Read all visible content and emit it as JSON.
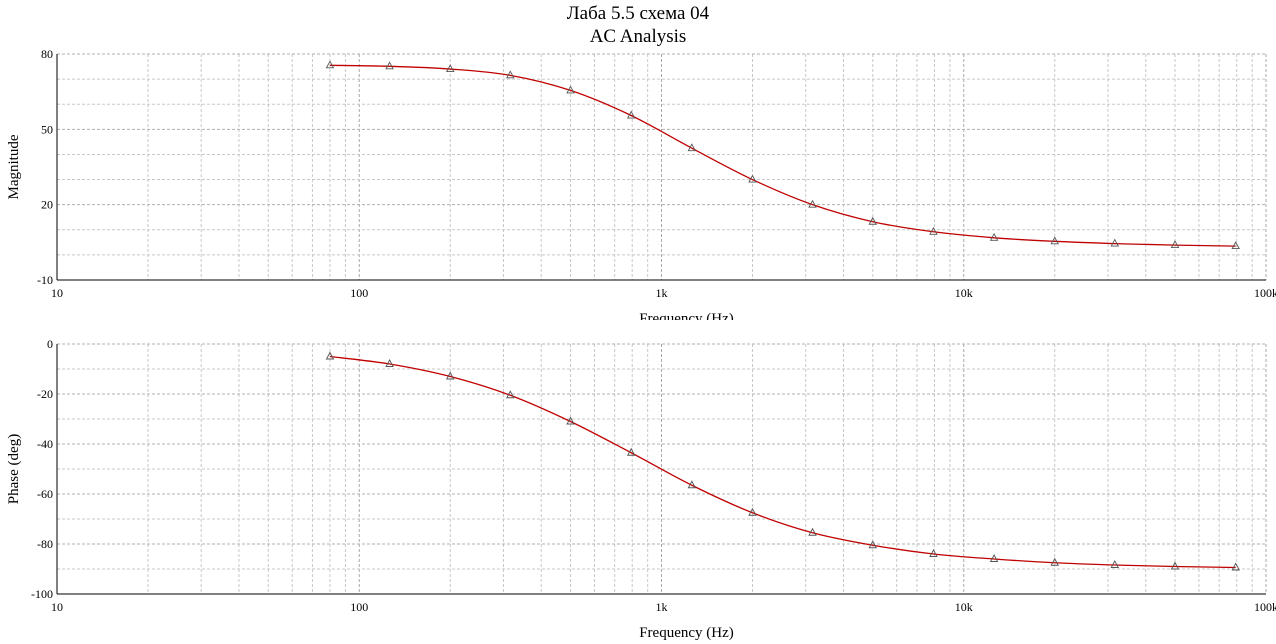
{
  "chart_data": [
    {
      "type": "line",
      "title": "Лаба 5.5 схема 04",
      "subtitle": "AC Analysis",
      "xlabel": "Frequency (Hz)",
      "ylabel": "Magnitude",
      "xscale": "log",
      "xlim": [
        10,
        100000
      ],
      "ylim": [
        -10,
        80
      ],
      "x_ticks": [
        10,
        100,
        1000,
        10000,
        100000
      ],
      "x_tick_labels": [
        "10",
        "100",
        "1k",
        "10k",
        "100k"
      ],
      "y_ticks": [
        -10,
        20,
        50,
        80
      ],
      "y_tick_labels": [
        "-10",
        "20",
        "50",
        "80"
      ],
      "grid": true,
      "line_color": "#c00000",
      "marker": "triangle",
      "series": [
        {
          "x": [
            80,
            126,
            200,
            316,
            500,
            794,
            1260,
            2000,
            3160,
            5000,
            7940,
            12600,
            20000,
            31600,
            50000,
            79400
          ],
          "y": [
            75.5,
            75.1,
            74.0,
            71.5,
            65.5,
            55.5,
            42.5,
            30.0,
            20.0,
            13.2,
            9.2,
            6.8,
            5.4,
            4.5,
            3.9,
            3.5
          ]
        }
      ]
    },
    {
      "type": "line",
      "xlabel": "Frequency (Hz)",
      "ylabel": "Phase (deg)",
      "xscale": "log",
      "xlim": [
        10,
        100000
      ],
      "ylim": [
        -100,
        0
      ],
      "x_ticks": [
        10,
        100,
        1000,
        10000,
        100000
      ],
      "x_tick_labels": [
        "10",
        "100",
        "1k",
        "10k",
        "100k"
      ],
      "y_ticks": [
        -100,
        -80,
        -60,
        -40,
        -20,
        0
      ],
      "y_tick_labels": [
        "-100",
        "-80",
        "-60",
        "-40",
        "-20",
        "0"
      ],
      "grid": true,
      "line_color": "#c00000",
      "marker": "triangle",
      "series": [
        {
          "x": [
            80,
            126,
            200,
            316,
            500,
            794,
            1260,
            2000,
            3160,
            5000,
            7940,
            12600,
            20000,
            31600,
            50000,
            79400
          ],
          "y": [
            -5.0,
            -8.0,
            -13.0,
            -20.5,
            -31.0,
            -43.5,
            -56.5,
            -67.5,
            -75.5,
            -80.5,
            -84.0,
            -86.0,
            -87.5,
            -88.4,
            -89.0,
            -89.4
          ]
        }
      ]
    }
  ]
}
